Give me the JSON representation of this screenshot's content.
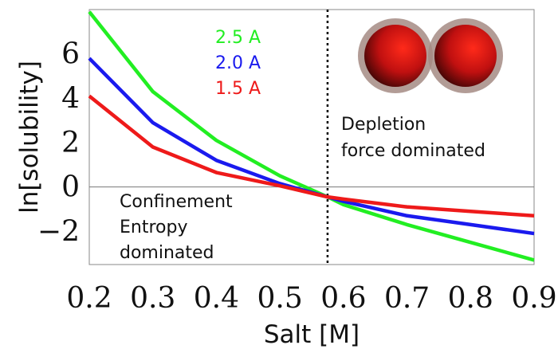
{
  "chart_data": {
    "type": "line",
    "title": "",
    "xlabel": "Salt [M]",
    "ylabel": "ln[solubility]",
    "xlim": [
      0.2,
      0.9
    ],
    "ylim": [
      -3.5,
      8
    ],
    "x_ticks": [
      "0.2",
      "0.3",
      "0.4",
      "0.5",
      "0.6",
      "0.7",
      "0.8",
      "0.9"
    ],
    "x_tick_values": [
      0.2,
      0.3,
      0.4,
      0.5,
      0.6,
      0.7,
      0.8,
      0.9
    ],
    "y_ticks": [
      "6",
      "4",
      "2",
      "0",
      "−2"
    ],
    "y_tick_values": [
      6,
      4,
      2,
      0,
      -2
    ],
    "grid": false,
    "zero_line": true,
    "vline_x": 0.575,
    "legend_position": "top-center",
    "x": [
      0.2,
      0.3,
      0.4,
      0.5,
      0.575,
      0.6,
      0.7,
      0.8,
      0.9
    ],
    "series": [
      {
        "name": "2.5 A",
        "color": "#22ee22",
        "values": [
          7.9,
          4.3,
          2.1,
          0.5,
          -0.45,
          -0.8,
          -1.7,
          -2.5,
          -3.3
        ]
      },
      {
        "name": "2.0 A",
        "color": "#1a1aee",
        "values": [
          5.8,
          2.9,
          1.2,
          0.15,
          -0.45,
          -0.65,
          -1.3,
          -1.7,
          -2.1
        ]
      },
      {
        "name": "1.5 A",
        "color": "#ee1a1a",
        "values": [
          4.1,
          1.8,
          0.65,
          0.05,
          -0.45,
          -0.55,
          -0.9,
          -1.1,
          -1.3
        ]
      }
    ],
    "annotations": {
      "left": [
        "Confinement",
        "Entropy",
        "dominated"
      ],
      "right": [
        "Depletion",
        "force dominated"
      ]
    },
    "spheres_icon": "two-red-spheres"
  }
}
